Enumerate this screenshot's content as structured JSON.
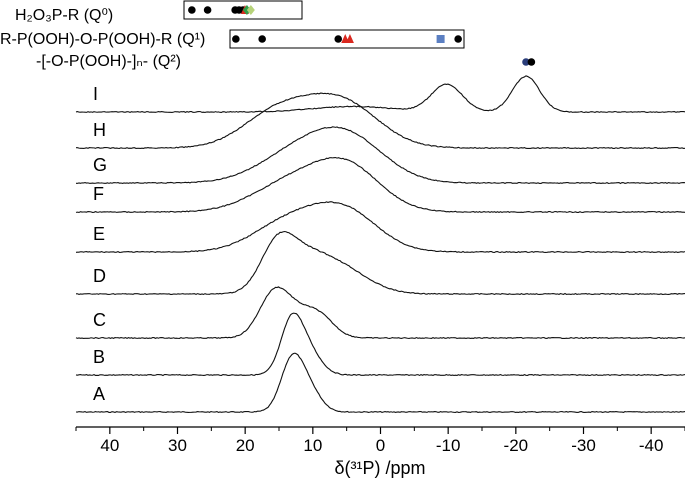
{
  "chart_data": {
    "type": "line",
    "xlabel": "δ(³¹P) /ppm",
    "x_reversed": true,
    "xlim": [
      45,
      -45
    ],
    "x_ticks": [
      40,
      30,
      20,
      10,
      0,
      -10,
      -20,
      -30,
      -40
    ],
    "x_tick_labels": [
      "40",
      "30",
      "20",
      "10",
      "0",
      "-10",
      "-20",
      "-30",
      "-40"
    ],
    "y_ticks_shown": false,
    "series": [
      {
        "name": "A",
        "peaks": [
          {
            "center": 13.2,
            "height": 0.85,
            "width": 1.6
          },
          {
            "center": 10.8,
            "height": 0.45,
            "width": 1.8
          }
        ]
      },
      {
        "name": "B",
        "peaks": [
          {
            "center": 13.2,
            "height": 0.9,
            "width": 1.6
          },
          {
            "center": 10.8,
            "height": 0.45,
            "width": 1.9
          }
        ]
      },
      {
        "name": "C",
        "peaks": [
          {
            "center": 15.8,
            "height": 0.75,
            "width": 2.2
          },
          {
            "center": 9.0,
            "height": 0.35,
            "width": 2.2
          },
          {
            "center": 12.5,
            "height": 0.35,
            "width": 2.5
          }
        ]
      },
      {
        "name": "D",
        "peaks": [
          {
            "center": 15.3,
            "height": 0.82,
            "width": 2.5
          },
          {
            "center": 7.0,
            "height": 0.55,
            "width": 4.5
          },
          {
            "center": 11.5,
            "height": 0.35,
            "width": 3.0
          }
        ]
      },
      {
        "name": "E",
        "peaks": [
          {
            "center": 5.5,
            "height": 0.75,
            "width": 5.0
          },
          {
            "center": 14.0,
            "height": 0.5,
            "width": 5.0
          }
        ]
      },
      {
        "name": "F",
        "peaks": [
          {
            "center": 5.0,
            "height": 0.8,
            "width": 5.0
          },
          {
            "center": 13.5,
            "height": 0.5,
            "width": 5.5
          }
        ]
      },
      {
        "name": "G",
        "peaks": [
          {
            "center": 5.0,
            "height": 0.82,
            "width": 5.5
          },
          {
            "center": 13.0,
            "height": 0.45,
            "width": 5.5
          }
        ]
      },
      {
        "name": "H",
        "peaks": [
          {
            "center": 6.0,
            "height": 0.85,
            "width": 5.5
          },
          {
            "center": 15.5,
            "height": 0.6,
            "width": 5.0
          }
        ]
      },
      {
        "name": "I",
        "peaks": [
          {
            "center": -21.5,
            "height": 0.65,
            "width": 2.0
          },
          {
            "center": -9.8,
            "height": 0.5,
            "width": 2.3
          },
          {
            "center": 4.0,
            "height": 0.1,
            "width": 6.0
          }
        ]
      }
    ],
    "reference_panels": [
      {
        "label": "H₂O₃P-R (Q⁰)",
        "xlim": [
          30,
          0
        ],
        "markers": [
          {
            "x": 28,
            "color": "#000000"
          },
          {
            "x": 24,
            "color": "#000000"
          },
          {
            "x": 17,
            "color": "#000000"
          },
          {
            "x": 16,
            "color": "#000000"
          },
          {
            "x": 15,
            "color": "#000000"
          },
          {
            "x": 14.5,
            "color": "#d9281f"
          },
          {
            "x": 14,
            "color": "#2f9e4a"
          },
          {
            "x": 13,
            "color": "#b7d37a"
          }
        ]
      },
      {
        "label": "R-P(OOH)-O-P(OOH)-R (Q¹)",
        "xlim": [
          20,
          -20
        ],
        "markers": [
          {
            "x": 19,
            "color": "#000000"
          },
          {
            "x": 14.5,
            "color": "#000000"
          },
          {
            "x": 1.5,
            "color": "#000000"
          },
          {
            "x": 0.3,
            "color": "#d9281f"
          },
          {
            "x": -0.5,
            "color": "#d9281f"
          },
          {
            "x": -16,
            "color": "#5b7fc2"
          },
          {
            "x": -19,
            "color": "#000000"
          }
        ]
      }
    ],
    "q2_label": "-[-O-P(OOH)-]ₙ- (Q²)",
    "q2_markers": [
      {
        "x": -21.5,
        "color": "#2a3d7a"
      },
      {
        "x": -22.3,
        "color": "#000000"
      }
    ]
  }
}
